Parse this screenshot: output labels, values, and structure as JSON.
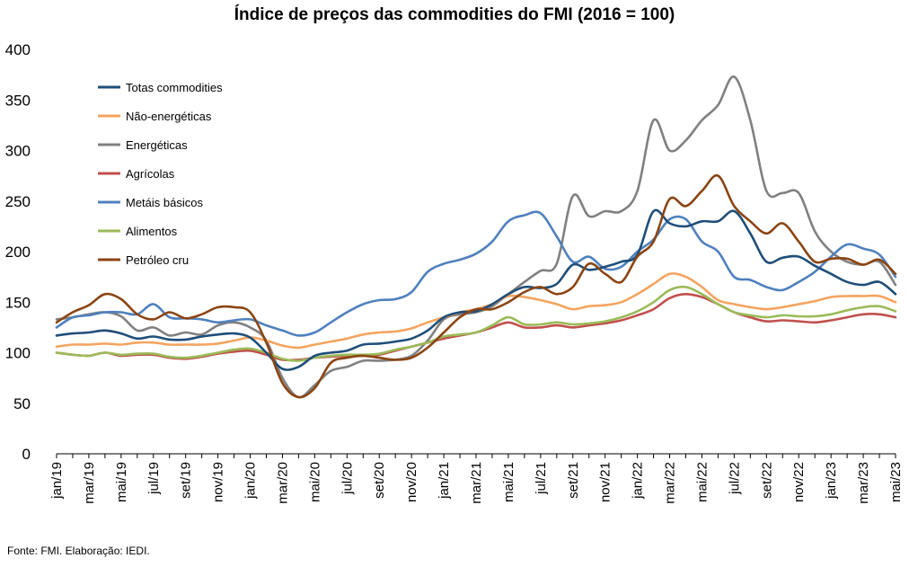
{
  "chart_data": {
    "type": "line",
    "title": "Índice de preços das commodities do FMI  (2016 = 100)",
    "source": "Fonte: FMI. Elaboração: IEDI.",
    "xlabel": "",
    "ylabel": "",
    "ylim": [
      0,
      400
    ],
    "yticks": [
      0,
      50,
      100,
      150,
      200,
      250,
      300,
      350,
      400
    ],
    "grid": false,
    "legend_position": "top-left",
    "x": [
      "jan/19",
      "fev/19",
      "mar/19",
      "abr/19",
      "mai/19",
      "jun/19",
      "jul/19",
      "ago/19",
      "set/19",
      "out/19",
      "nov/19",
      "dez/19",
      "jan/20",
      "fev/20",
      "mar/20",
      "abr/20",
      "mai/20",
      "jun/20",
      "jul/20",
      "ago/20",
      "set/20",
      "out/20",
      "nov/20",
      "dez/20",
      "jan/21",
      "fev/21",
      "mar/21",
      "abr/21",
      "mai/21",
      "jun/21",
      "jul/21",
      "ago/21",
      "set/21",
      "out/21",
      "nov/21",
      "dez/21",
      "jan/22",
      "fev/22",
      "mar/22",
      "abr/22",
      "mai/22",
      "jun/22",
      "jul/22",
      "ago/22",
      "set/22",
      "out/22",
      "nov/22",
      "dez/22",
      "jan/23",
      "fev/23",
      "mar/23",
      "abr/23",
      "mai/23"
    ],
    "x_tick_labels": [
      "jan/19",
      "mar/19",
      "mai/19",
      "jul/19",
      "set/19",
      "nov/19",
      "jan/20",
      "mar/20",
      "mai/20",
      "jul/20",
      "set/20",
      "nov/20",
      "jan/21",
      "mar/21",
      "mai/21",
      "jul/21",
      "set/21",
      "nov/21",
      "jan/22",
      "mar/22",
      "mai/22",
      "jul/22",
      "set/22",
      "nov/22",
      "jan/23",
      "mar/23",
      "mai/23"
    ],
    "series": [
      {
        "name": "Totas commodities",
        "color": "#1f4e79",
        "values": [
          117,
          119,
          120,
          122,
          119,
          114,
          116,
          113,
          113,
          116,
          118,
          119,
          115,
          100,
          84,
          86,
          97,
          100,
          102,
          108,
          109,
          111,
          114,
          122,
          135,
          140,
          141,
          148,
          158,
          165,
          164,
          168,
          187,
          182,
          185,
          190,
          197,
          240,
          228,
          225,
          230,
          230,
          240,
          218,
          190,
          194,
          195,
          186,
          178,
          170,
          167,
          170,
          158
        ]
      },
      {
        "name": "Não-energéticas",
        "color": "#f4a460",
        "values": [
          106,
          108,
          108,
          109,
          108,
          110,
          110,
          108,
          108,
          108,
          109,
          112,
          115,
          112,
          107,
          105,
          108,
          111,
          114,
          118,
          120,
          121,
          124,
          130,
          135,
          140,
          143,
          148,
          156,
          155,
          152,
          148,
          143,
          146,
          147,
          150,
          158,
          168,
          178,
          175,
          165,
          152,
          148,
          145,
          143,
          145,
          148,
          151,
          155,
          156,
          156,
          156,
          150
        ]
      },
      {
        "name": "Energéticas",
        "color": "#808080",
        "values": [
          133,
          135,
          138,
          140,
          136,
          122,
          125,
          117,
          120,
          118,
          127,
          130,
          125,
          112,
          75,
          56,
          68,
          82,
          86,
          92,
          92,
          93,
          97,
          112,
          133,
          138,
          140,
          146,
          158,
          170,
          181,
          188,
          255,
          235,
          240,
          240,
          260,
          330,
          300,
          310,
          330,
          345,
          373,
          330,
          260,
          258,
          258,
          220,
          200,
          190,
          187,
          190,
          167
        ]
      },
      {
        "name": "Agrícolas",
        "color": "#c0504d",
        "values": [
          100,
          98,
          97,
          100,
          97,
          98,
          98,
          95,
          94,
          96,
          99,
          101,
          102,
          98,
          93,
          93,
          95,
          96,
          97,
          97,
          98,
          102,
          106,
          110,
          114,
          117,
          120,
          125,
          130,
          125,
          125,
          127,
          125,
          127,
          129,
          132,
          137,
          143,
          154,
          158,
          155,
          148,
          140,
          135,
          131,
          132,
          131,
          130,
          132,
          135,
          138,
          138,
          135
        ]
      },
      {
        "name": "Metáis básicos",
        "color": "#4f81bd",
        "values": [
          125,
          135,
          137,
          140,
          140,
          138,
          148,
          135,
          134,
          133,
          130,
          132,
          133,
          127,
          122,
          117,
          120,
          130,
          140,
          148,
          152,
          153,
          160,
          180,
          188,
          192,
          198,
          210,
          230,
          236,
          238,
          215,
          190,
          195,
          183,
          185,
          200,
          212,
          232,
          232,
          210,
          200,
          175,
          172,
          165,
          162,
          170,
          180,
          195,
          207,
          203,
          197,
          175
        ]
      },
      {
        "name": "Alimentos",
        "color": "#9bbb59",
        "values": [
          100,
          98,
          97,
          100,
          98,
          99,
          99,
          96,
          95,
          97,
          100,
          103,
          104,
          100,
          94,
          92,
          95,
          97,
          98,
          98,
          99,
          103,
          106,
          110,
          116,
          118,
          120,
          127,
          135,
          128,
          128,
          130,
          128,
          129,
          131,
          135,
          141,
          150,
          162,
          165,
          158,
          148,
          140,
          137,
          135,
          137,
          136,
          136,
          138,
          142,
          145,
          146,
          141
        ]
      },
      {
        "name": "Petróleo cru",
        "color": "#8b4513",
        "values": [
          130,
          140,
          147,
          158,
          153,
          138,
          133,
          140,
          134,
          138,
          145,
          145,
          140,
          110,
          70,
          56,
          65,
          90,
          95,
          97,
          95,
          93,
          95,
          105,
          120,
          135,
          143,
          143,
          150,
          160,
          165,
          158,
          165,
          188,
          178,
          170,
          195,
          210,
          252,
          245,
          260,
          275,
          245,
          230,
          218,
          228,
          210,
          190,
          193,
          193,
          187,
          192,
          178
        ]
      }
    ]
  }
}
